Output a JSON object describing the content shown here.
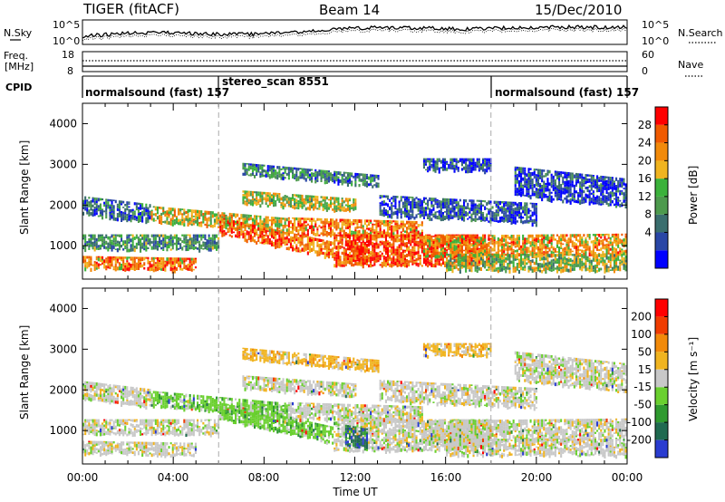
{
  "header": {
    "radar": "TIGER (fitACF)",
    "beam": "Beam 14",
    "date": "15/Dec/2010"
  },
  "panels": {
    "nsky_label": "N.Sky",
    "nsearch_label": "N.Search",
    "nsky_ticks": [
      "10^5",
      "10^0"
    ],
    "nsearch_ticks": [
      "10^5",
      "10^0"
    ],
    "freq_label_1": "Freq.",
    "freq_label_2": "[MHz]",
    "freq_ticks": [
      "18",
      "8"
    ],
    "nave_label": "Nave",
    "nave_ticks": [
      "60",
      "0"
    ],
    "cpid_label": "CPID",
    "cpid_segments": [
      "normalsound (fast) 157",
      "stereo_scan 8551",
      "normalsound (fast) 157"
    ]
  },
  "axes": {
    "ylabel": "Slant Range [km]",
    "y_ticks": [
      "4000",
      "3000",
      "2000",
      "1000"
    ],
    "xlabel": "Time UT",
    "x_ticks": [
      "00:00",
      "04:00",
      "08:00",
      "12:00",
      "16:00",
      "20:00",
      "00:00"
    ]
  },
  "colorbars": {
    "power_label": "Power [dB]",
    "power_ticks": [
      "28",
      "24",
      "20",
      "16",
      "12",
      "8",
      "4"
    ],
    "power_colors": [
      "#0000ff",
      "#2946a6",
      "#3a6e6e",
      "#4d9a4d",
      "#3bb23b",
      "#f0b420",
      "#f28a0a",
      "#f05a00",
      "#ff0000"
    ],
    "velocity_label": "Velocity [m s⁻¹]",
    "velocity_ticks": [
      "200",
      "100",
      "50",
      "15",
      "-15",
      "-50",
      "-100",
      "-200"
    ],
    "velocity_colors": [
      "#2a3cd0",
      "#206a50",
      "#2f9a2f",
      "#6ad02f",
      "#c8c8c8",
      "#f0b420",
      "#f28a0a",
      "#f03c00",
      "#ff0000"
    ]
  },
  "chart_data": {
    "type": "heatmap",
    "x_range_hours": [
      0,
      24
    ],
    "y_range_km": [
      180,
      4500
    ],
    "mode_boundaries_hours": [
      6,
      18
    ],
    "power_scale_db": [
      0,
      30
    ],
    "velocity_scale_ms": [
      -250,
      250
    ]
  }
}
